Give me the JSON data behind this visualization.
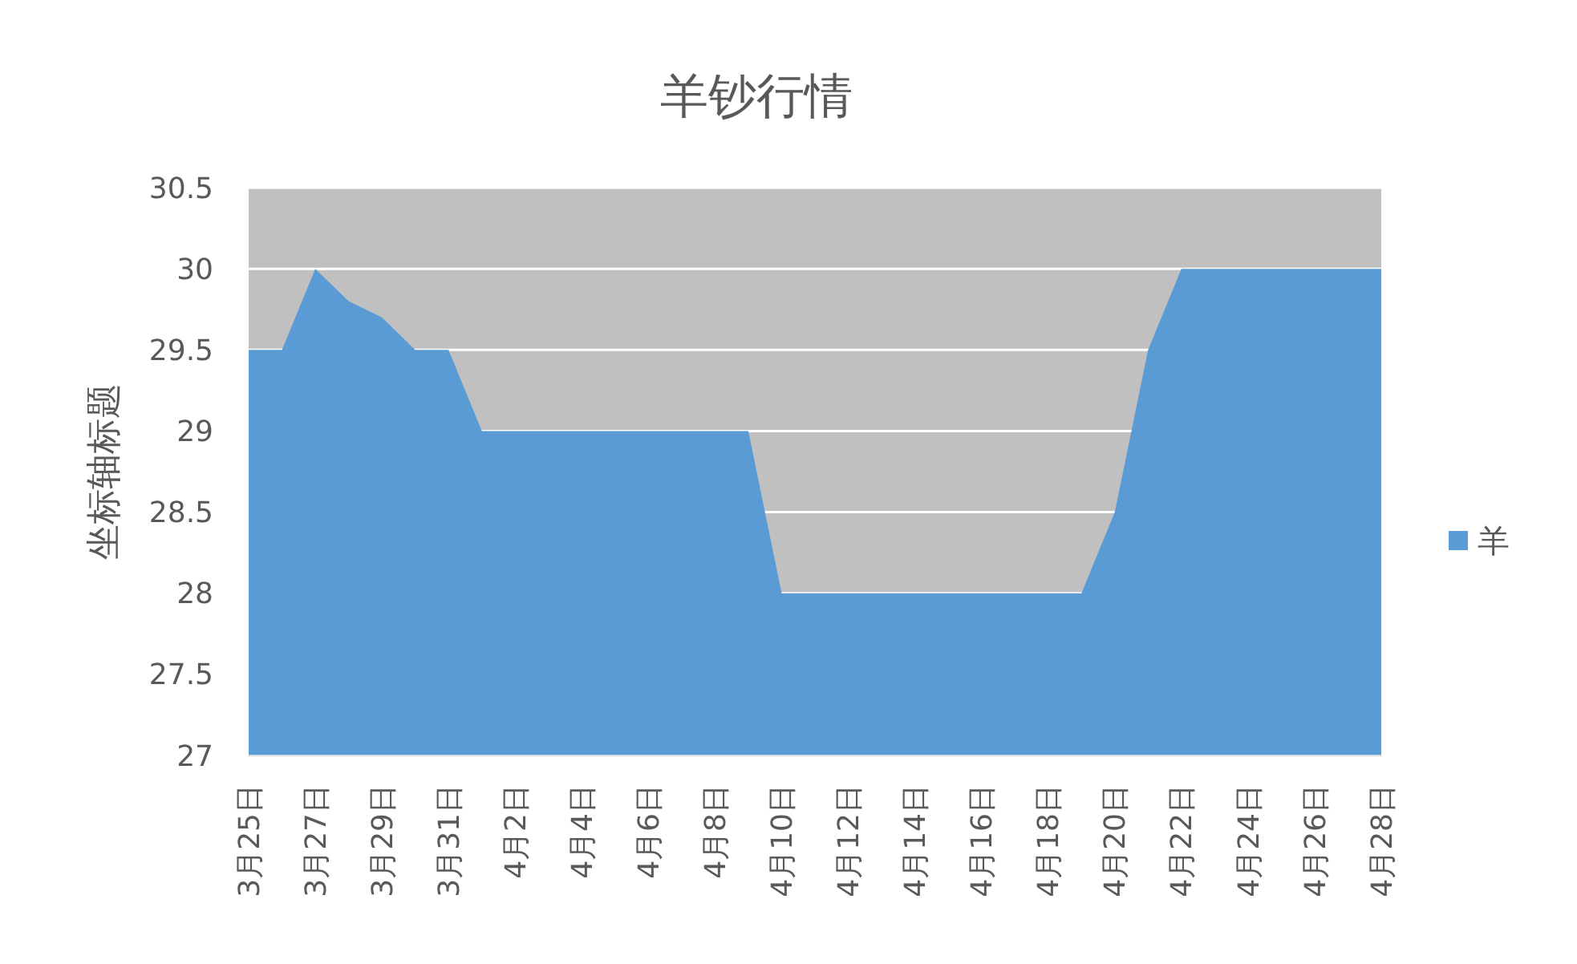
{
  "chart_data": {
    "type": "area",
    "title": "羊钞行情",
    "ylabel": "坐标轴标题",
    "categories": [
      "3月25日",
      null,
      "3月27日",
      null,
      "3月29日",
      null,
      "3月31日",
      null,
      "4月2日",
      null,
      "4月4日",
      null,
      "4月6日",
      null,
      "4月8日",
      null,
      "4月10日",
      null,
      "4月12日",
      null,
      "4月14日",
      null,
      "4月16日",
      null,
      "4月18日",
      null,
      "4月20日",
      null,
      "4月22日",
      null,
      "4月24日",
      null,
      "4月26日",
      null,
      "4月28日"
    ],
    "series": [
      {
        "name": "羊",
        "color": "#5b9bd5",
        "values": [
          29.5,
          29.5,
          30,
          29.8,
          29.7,
          29.5,
          29.5,
          29,
          29,
          29,
          29,
          29,
          29,
          29,
          29,
          29,
          28,
          28,
          28,
          28,
          28,
          28,
          28,
          28,
          28,
          28,
          28.5,
          29.5,
          30,
          30,
          30,
          30,
          30,
          30,
          30
        ]
      }
    ],
    "ylim": [
      27,
      30.5
    ],
    "yticks": [
      27,
      27.5,
      28,
      28.5,
      29,
      29.5,
      30,
      30.5
    ],
    "grid": "y",
    "legend": "right"
  }
}
